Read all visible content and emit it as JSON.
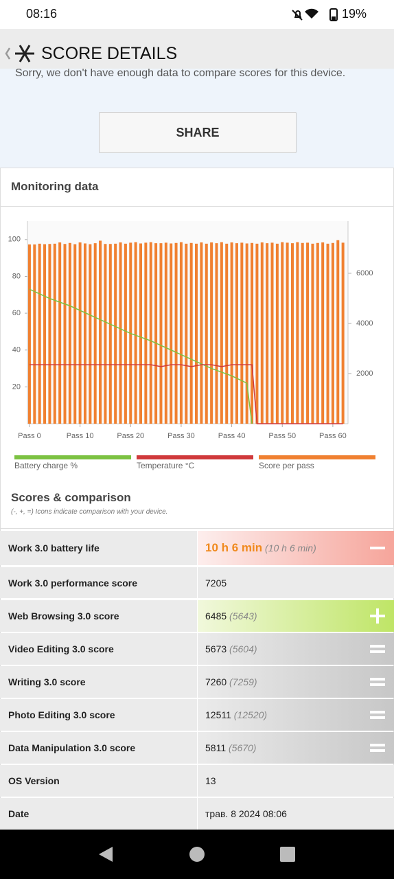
{
  "status_bar": {
    "time": "08:16",
    "battery": "19%"
  },
  "header": {
    "title": "SCORE DETAILS"
  },
  "notice": "Sorry, we don't have enough data to compare scores for this device.",
  "share_button": "SHARE",
  "monitoring": {
    "title": "Monitoring data"
  },
  "chart_data": {
    "type": "bar",
    "xlim": [
      -0.4,
      63
    ],
    "xticks": [
      {
        "value": 0,
        "label": "Pass 0"
      },
      {
        "value": 10,
        "label": "Pass 10"
      },
      {
        "value": 20,
        "label": "Pass 20"
      },
      {
        "value": 30,
        "label": "Pass 30"
      },
      {
        "value": 40,
        "label": "Pass 40"
      },
      {
        "value": 50,
        "label": "Pass 50"
      },
      {
        "value": 60,
        "label": "Pass 60"
      }
    ],
    "ylim": [
      0,
      110
    ],
    "yticks": [
      20,
      40,
      60,
      80,
      100
    ],
    "y2lim": [
      0,
      8080
    ],
    "y2ticks": [
      2000,
      4000,
      6000
    ],
    "legend": "bottom",
    "series": [
      {
        "name": "Battery charge %",
        "type": "line",
        "color": "#7cc242",
        "x": [
          0,
          4,
          8,
          12,
          16,
          20,
          24,
          28,
          32,
          36,
          40,
          43,
          44
        ],
        "values": [
          73,
          68,
          64,
          59,
          54,
          49,
          45,
          40,
          35,
          30,
          26,
          22,
          0
        ]
      },
      {
        "name": "Temperature °C",
        "type": "line",
        "color": "#d0393b",
        "x": [
          0,
          24,
          26,
          28,
          30,
          32,
          34,
          36,
          38,
          40,
          42,
          44,
          45,
          62
        ],
        "values": [
          32,
          32,
          31,
          32,
          32,
          31,
          32,
          32,
          31,
          32,
          32,
          32,
          0,
          0
        ]
      },
      {
        "name": "Score per pass",
        "type": "bar",
        "color": "#f08030",
        "axis": "y2",
        "x": [
          0,
          1,
          2,
          3,
          4,
          5,
          6,
          7,
          8,
          9,
          10,
          11,
          12,
          13,
          14,
          15,
          16,
          17,
          18,
          19,
          20,
          21,
          22,
          23,
          24,
          25,
          26,
          27,
          28,
          29,
          30,
          31,
          32,
          33,
          34,
          35,
          36,
          37,
          38,
          39,
          40,
          41,
          42,
          43,
          44,
          45,
          46,
          47,
          48,
          49,
          50,
          51,
          52,
          53,
          54,
          55,
          56,
          57,
          58,
          59,
          60,
          61,
          62
        ],
        "values": [
          7150,
          7150,
          7180,
          7160,
          7170,
          7180,
          7230,
          7170,
          7210,
          7160,
          7230,
          7190,
          7160,
          7200,
          7300,
          7170,
          7170,
          7180,
          7230,
          7180,
          7220,
          7240,
          7190,
          7220,
          7240,
          7200,
          7200,
          7220,
          7190,
          7210,
          7240,
          7180,
          7210,
          7180,
          7230,
          7180,
          7230,
          7200,
          7240,
          7180,
          7230,
          7200,
          7220,
          7190,
          7210,
          7180,
          7230,
          7200,
          7220,
          7180,
          7240,
          7220,
          7200,
          7240,
          7210,
          7220,
          7180,
          7210,
          7230,
          7180,
          7210,
          7320,
          7220
        ]
      }
    ]
  },
  "scores": {
    "title": "Scores & comparison",
    "note": "(-, +, =) Icons indicate comparison with your device.",
    "rows": [
      {
        "label": "Work 3.0 battery life",
        "value": "10 h 6 min",
        "reference": "(10 h 6 min)",
        "icon": "-"
      },
      {
        "label": "Work 3.0 performance score",
        "value": "7205"
      },
      {
        "label": "Web Browsing 3.0 score",
        "value": "6485",
        "reference": "(5643)",
        "icon": "+"
      },
      {
        "label": "Video Editing 3.0 score",
        "value": "5673",
        "reference": "(5604)",
        "icon": "="
      },
      {
        "label": "Writing 3.0 score",
        "value": "7260",
        "reference": "(7259)",
        "icon": "="
      },
      {
        "label": "Photo Editing 3.0 score",
        "value": "12511",
        "reference": "(12520)",
        "icon": "="
      },
      {
        "label": "Data Manipulation 3.0 score",
        "value": "5811",
        "reference": "(5670)",
        "icon": "="
      },
      {
        "label": "OS Version",
        "value": "13"
      },
      {
        "label": "Date",
        "value": "трав. 8 2024 08:06"
      }
    ]
  }
}
